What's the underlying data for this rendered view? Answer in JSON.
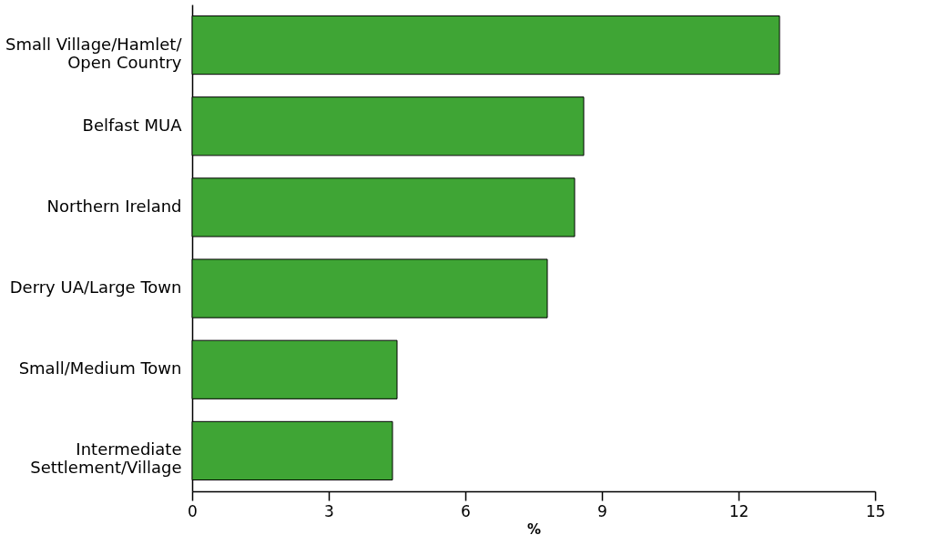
{
  "chart_data": {
    "type": "bar",
    "orientation": "horizontal",
    "xlabel": "%",
    "categories": [
      "Small Village/Hamlet/\nOpen Country",
      "Belfast MUA",
      "Northern Ireland",
      "Derry UA/Large Town",
      "Small/Medium Town",
      "Intermediate\nSettlement/Village"
    ],
    "values": [
      12.9,
      8.6,
      8.4,
      7.8,
      4.5,
      4.4
    ],
    "color": "#3fa535",
    "xlim": [
      0,
      15
    ],
    "xticks": [
      0,
      3,
      6,
      9,
      12,
      15
    ],
    "grid": false
  }
}
